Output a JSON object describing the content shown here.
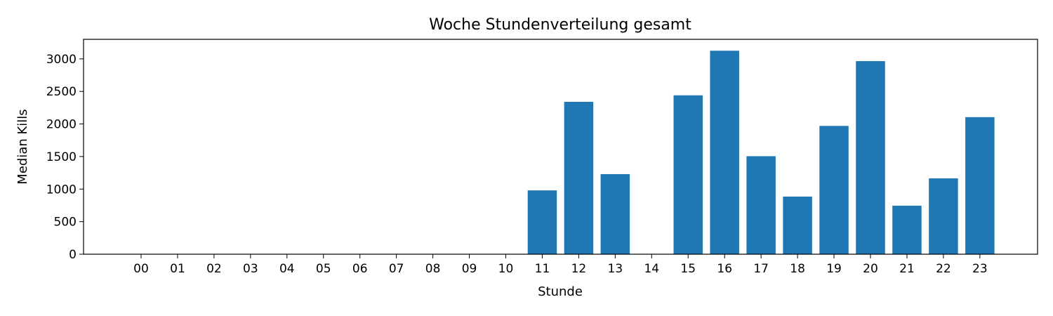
{
  "chart_data": {
    "type": "bar",
    "title": "Woche Stundenverteilung gesamt",
    "xlabel": "Stunde",
    "ylabel": "Median Kills",
    "categories": [
      "00",
      "01",
      "02",
      "03",
      "04",
      "05",
      "06",
      "07",
      "08",
      "09",
      "10",
      "11",
      "12",
      "13",
      "14",
      "15",
      "16",
      "17",
      "18",
      "19",
      "20",
      "21",
      "22",
      "23"
    ],
    "values": [
      0,
      0,
      0,
      0,
      0,
      0,
      0,
      0,
      0,
      0,
      0,
      980,
      2340,
      1230,
      0,
      2440,
      3125,
      1505,
      885,
      1970,
      2965,
      745,
      1165,
      2105
    ],
    "ylim": [
      0,
      3300
    ],
    "yticks": [
      0,
      500,
      1000,
      1500,
      2000,
      2500,
      3000
    ],
    "ytick_labels": [
      "0",
      "500",
      "1000",
      "1500",
      "2000",
      "2500",
      "3000"
    ],
    "bar_color": "#1f77b4",
    "grid": false,
    "legend": null
  }
}
